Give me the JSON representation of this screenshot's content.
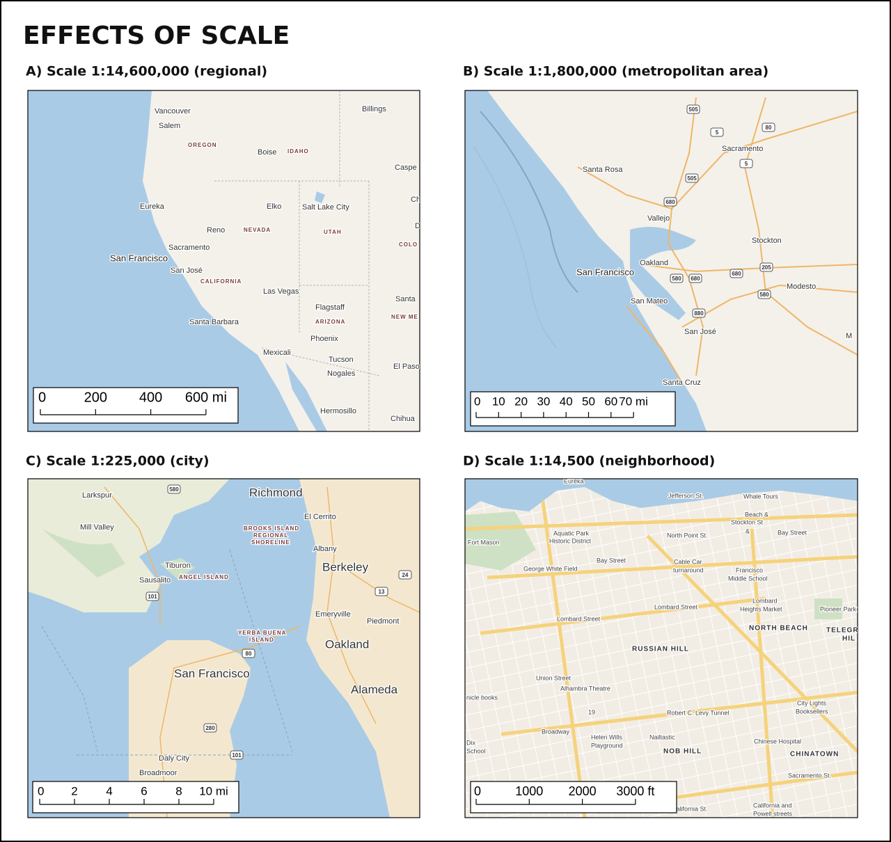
{
  "header": {
    "title": "EFFECTS OF SCALE"
  },
  "panels": [
    {
      "title": "A) Scale 1:14,600,000 (regional)",
      "labels": [
        "Vancouver",
        "Salem",
        "OREGON",
        "Billings",
        "Boise",
        "IDAHO",
        "Caspe",
        "Eureka",
        "Elko",
        "Salt Lake City",
        "Ch",
        "Reno",
        "NEVADA",
        "UTAH",
        "D",
        "COLO",
        "Sacramento",
        "San Francisco",
        "San José",
        "CALIFORNIA",
        "Las Vegas",
        "Santa",
        "Flagstaff",
        "ARIZONA",
        "NEW ME",
        "Santa Barbara",
        "Phoenix",
        "Mexicali",
        "Tucson",
        "El Paso",
        "Nogales",
        "Hermosillo",
        "Chihua"
      ],
      "scale_labels": [
        "0",
        "200",
        "400",
        "600 mi"
      ]
    },
    {
      "title": "B) Scale 1:1,800,000 (metropolitan area)",
      "labels": [
        "Sacramento",
        "Santa Rosa",
        "Vallejo",
        "Stockton",
        "Oakland",
        "San Francisco",
        "Modesto",
        "San Mateo",
        "San José",
        "Santa Cruz",
        "M",
        "505",
        "5",
        "80",
        "5",
        "505",
        "680",
        "580",
        "680",
        "680",
        "205",
        "580",
        "880"
      ],
      "scale_labels": [
        "0",
        "10",
        "20",
        "30",
        "40",
        "50",
        "60",
        "70 mi"
      ]
    },
    {
      "title": "C) Scale 1:225,000 (city)",
      "labels": [
        "Larkspur",
        "Richmond",
        "Mill Valley",
        "El Cerrito",
        "BROOKS ISLAND",
        "REGIONAL",
        "SHORELINE",
        "Albany",
        "Tiburon",
        "Berkeley",
        "Sausalito",
        "ANGEL ISLAND",
        "Emeryville",
        "Piedmont",
        "YERBA BUENA",
        "ISLAND",
        "Oakland",
        "San Francisco",
        "Alameda",
        "Daly City",
        "Broadmoor",
        "580",
        "24",
        "13",
        "101",
        "80",
        "280",
        "101"
      ],
      "scale_labels": [
        "0",
        "2",
        "4",
        "6",
        "8",
        "10 mi"
      ]
    },
    {
      "title": "D) Scale 1:14,500 (neighborhood)",
      "labels": [
        "Eureka",
        "Whale Tours",
        "Jefferson St.",
        "Beach &",
        "Stockton St",
        "&",
        "Bay Street",
        "Aquatic Park",
        "Historic District",
        "Fort Mason",
        "North Point St.",
        "Cable Car",
        "turnaround",
        "George White Field",
        "Bay Street",
        "Francisco",
        "Middle School",
        "Lombard",
        "Heights Market",
        "Pioneer Park",
        "Lombard Street",
        "Lombard Street",
        "NORTH BEACH",
        "TELEGR",
        "HIL",
        "RUSSIAN HILL",
        "Union Street",
        "Alhambra Theatre",
        "nicle books",
        "City Lights",
        "Booksellers",
        "19",
        "Robert C. Levy Tunnel",
        "Broadway",
        "Helen Wills",
        "Playground",
        "Nailtastic",
        "Dix",
        "School",
        "Chinese Hospital",
        "NOB HILL",
        "CHINATOWN",
        "Sacramento St.",
        "California St.",
        "California and",
        "Powell streets"
      ],
      "scale_labels": [
        "0",
        "1000",
        "2000",
        "3000 ft"
      ]
    }
  ]
}
